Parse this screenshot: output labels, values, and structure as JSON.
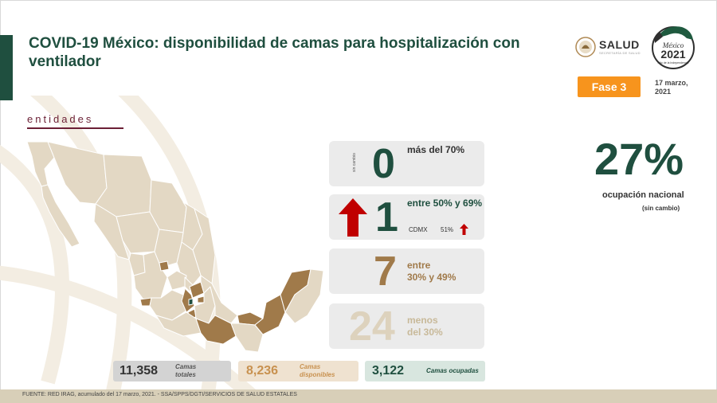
{
  "header": {
    "title": "COVID-19 México: disponibilidad de camas para hospitalización con ventilador",
    "logo_salud": {
      "word": "SALUD",
      "sub": "SECRETARÍA DE SALUD"
    },
    "logo_2021": {
      "line1": "México",
      "year": "2021",
      "line2": "Año de la Independencia"
    },
    "phase_label": "Fase 3",
    "date_line1": "17 marzo,",
    "date_line2": "2021"
  },
  "section": {
    "label": "entidades"
  },
  "categories": [
    {
      "count": "0",
      "label": "más del 70%",
      "note": "sin cambio"
    },
    {
      "count": "1",
      "label": "entre 50% y 69%",
      "state": "CDMX",
      "state_pct": "51%"
    },
    {
      "count": "7",
      "label_line1": "entre",
      "label_line2": "30% y 49%"
    },
    {
      "count": "24",
      "label_line1": "menos",
      "label_line2": "del 30%"
    }
  ],
  "national": {
    "pct": "27%",
    "label": "ocupación nacional",
    "note": "(sin cambio)"
  },
  "stats": [
    {
      "value": "11,358",
      "label_line1": "Camas",
      "label_line2": "totales"
    },
    {
      "value": "8,236",
      "label_line1": "Camas",
      "label_line2": "disponibles"
    },
    {
      "value": "3,122",
      "label": "Camas ocupadas"
    }
  ],
  "footer": {
    "text": "FUENTE: RED IRAG, acumulado del 17 marzo, 2021. -  SSA/SPPS/DGTI/SERVICIOS DE SALUD ESTATALES"
  },
  "colors": {
    "primary_green": "#1f4f3f",
    "accent_orange": "#f7941d",
    "maroon": "#6b1f35",
    "map_base": "#e3d8c4",
    "map_mid": "#a07a4a",
    "arrow_red": "#c00000"
  },
  "icons": {
    "up_arrow": "arrow-up-icon"
  }
}
